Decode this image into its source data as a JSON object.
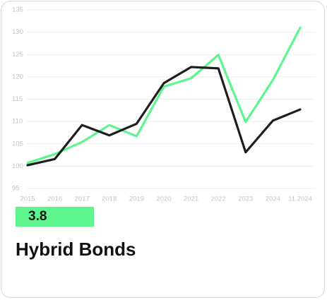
{
  "card": {
    "badge": "3.8",
    "title": "Hybrid Bonds"
  },
  "chart_data": {
    "type": "line",
    "categories": [
      "2015",
      "2016",
      "2017",
      "2018",
      "2019",
      "2020",
      "2021",
      "2022",
      "2023",
      "2024",
      "11.2024"
    ],
    "series": [
      {
        "color": "#5ef58f",
        "values": [
          100.7,
          102.7,
          105.4,
          109.2,
          106.7,
          117.8,
          119.7,
          124.9,
          109.9,
          119.3,
          131.0
        ]
      },
      {
        "color": "#1e1e1e",
        "values": [
          100.2,
          101.6,
          109.2,
          106.9,
          109.5,
          118.6,
          122.2,
          121.9,
          103.1,
          110.2,
          112.7
        ]
      }
    ],
    "ylim": [
      95,
      135
    ],
    "yticks": [
      95,
      100,
      105,
      110,
      115,
      120,
      125,
      130,
      135
    ],
    "grid": true
  }
}
